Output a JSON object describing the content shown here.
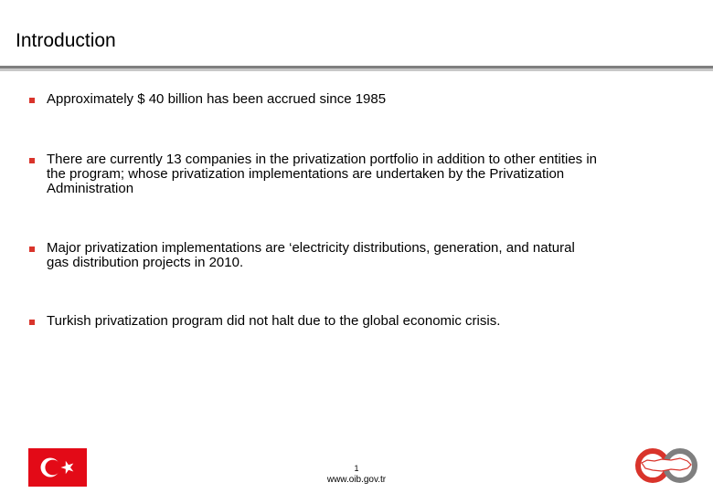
{
  "slide": {
    "title": "Introduction",
    "bullets": [
      "Approximately $ 40 billion has been accrued since 1985",
      "There are currently 13 companies in the privatization portfolio in addition to other entities in\nthe program; whose privatization implementations are undertaken by the Privatization\nAdministration",
      "Major privatization implementations are  ‘electricity distributions, generation, and natural\ngas distribution projects in 2010.",
      "Turkish privatization program did not halt due to the global economic crisis."
    ]
  },
  "footer": {
    "page_number": "1",
    "url": "www.oib.gov.tr",
    "flag_icon": "turkish-flag-icon",
    "logo_icon": "oib-logo-icon"
  },
  "colors": {
    "accent_red": "#d9342b",
    "flag_red": "#e30a17",
    "rule_dark": "#7f7f7f",
    "rule_light": "#c8c8c8"
  }
}
